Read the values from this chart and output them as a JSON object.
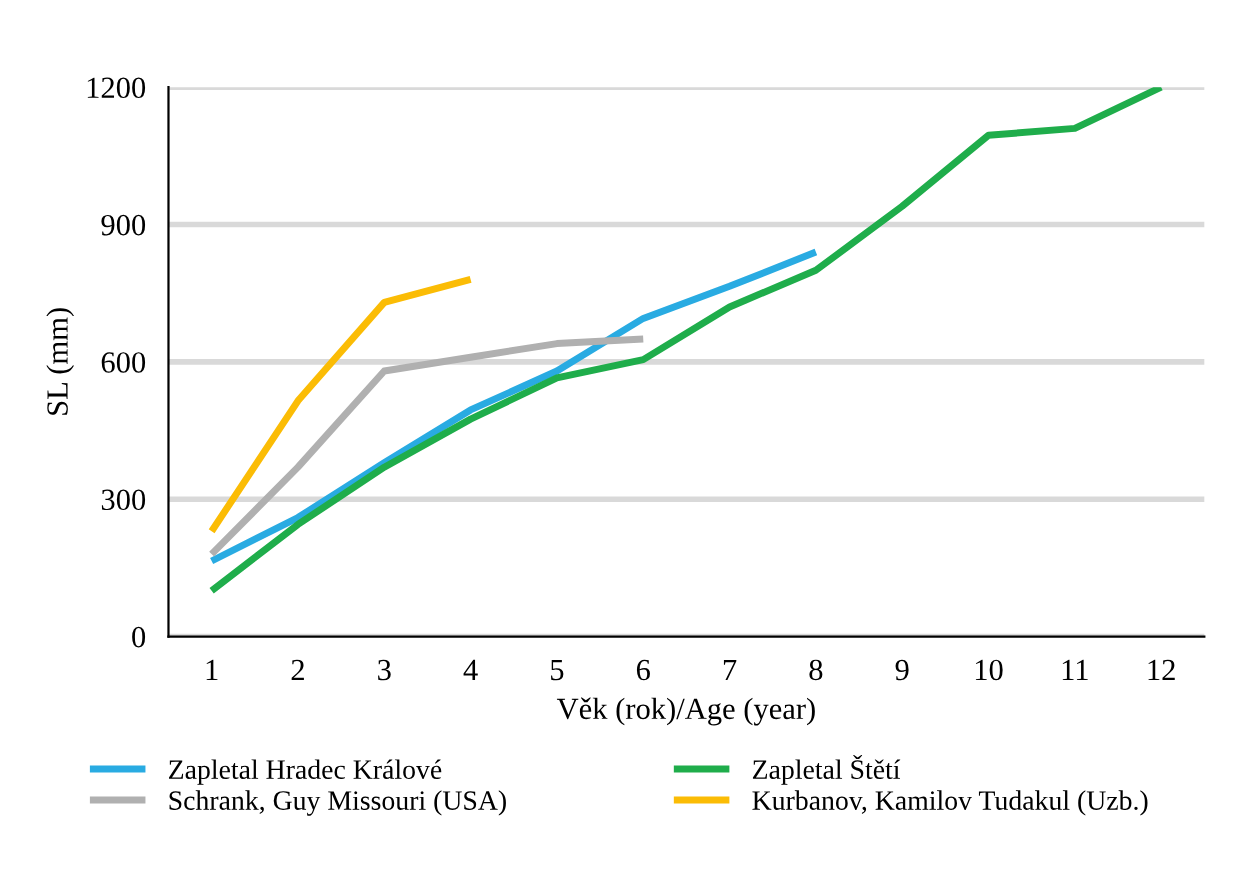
{
  "chart_data": {
    "type": "line",
    "xlabel": "Věk (rok)/Age (year)",
    "ylabel": "SL (mm)",
    "categories": [
      "1",
      "2",
      "3",
      "4",
      "5",
      "6",
      "7",
      "8",
      "9",
      "10",
      "11",
      "12"
    ],
    "series": [
      {
        "name": "Zapletal Hradec Králové",
        "color": "#29abe2",
        "values": [
          165,
          260,
          380,
          495,
          580,
          695,
          765,
          840,
          null,
          null,
          null,
          null
        ]
      },
      {
        "name": "Zapletal Štětí",
        "color": "#1fad4b",
        "values": [
          100,
          245,
          370,
          475,
          565,
          605,
          720,
          800,
          940,
          1095,
          1110,
          1200
        ]
      },
      {
        "name": "Schrank, Guy Missouri (USA)",
        "color": "#b0b0b0",
        "values": [
          180,
          370,
          580,
          610,
          640,
          650,
          null,
          null,
          null,
          null,
          null,
          null
        ]
      },
      {
        "name": "Kurbanov, Kamilov Tudakul (Uzb.)",
        "color": "#fbbc05",
        "values": [
          230,
          515,
          730,
          780,
          null,
          null,
          null,
          null,
          null,
          null,
          null,
          null
        ]
      }
    ],
    "ylim": [
      0,
      1200
    ],
    "yticks": [
      0,
      300,
      600,
      900,
      1200
    ],
    "grid": "y",
    "legend": "bottom",
    "line_style": "solid",
    "marker": "none"
  }
}
